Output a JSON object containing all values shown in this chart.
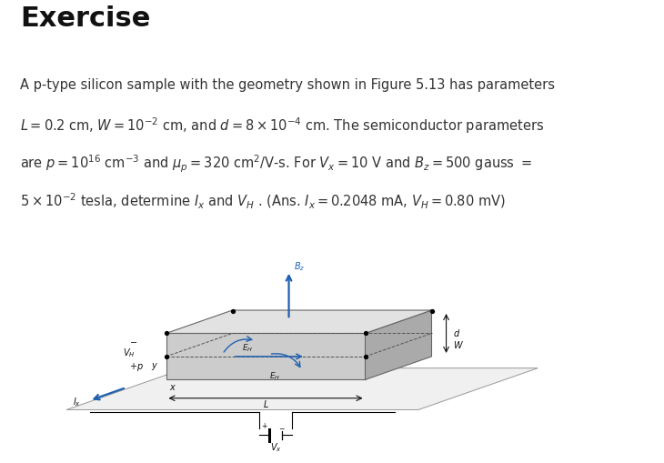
{
  "title": "Exercise",
  "title_fontsize": 22,
  "title_fontweight": "bold",
  "body_text_line1": "A p-type silicon sample with the geometry shown in Figure 5.13 has parameters",
  "body_text_line2": "$L = 0.2$ cm, $W = 10^{-2}$ cm, and $d = 8 \\times 10^{-4}$ cm. The semiconductor parameters",
  "body_text_line3": "are $p = 10^{16}$ cm$^{-3}$ and $\\mu_p = 320$ cm$^2$/V-s. For $V_x = 10$ V and $B_z = 500$ gauss $=$",
  "body_text_line4": "$5 \\times 10^{-2}$ tesla, determine $I_x$ and $V_H$ . (Ans. $I_x = 0.2048$ mA, $V_H = 0.80$ mV)",
  "body_fontsize": 10.5,
  "background_color": "#ffffff",
  "text_color": "#333333",
  "blue_color": "#2060b0",
  "gray_face": "#cccccc",
  "gray_top": "#e2e2e2",
  "gray_side": "#aaaaaa",
  "gray_plane": "#f0f0f0"
}
